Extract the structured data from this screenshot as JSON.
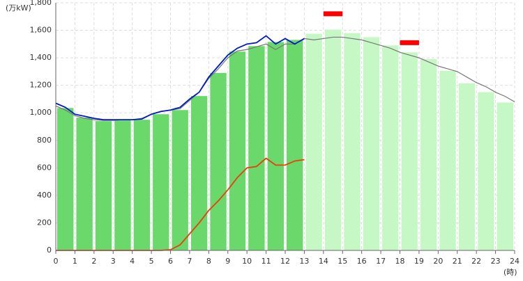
{
  "chart_data": {
    "type": "bar",
    "y_unit_label": "(万kW)",
    "x_unit_label": "(時)",
    "xlim": [
      0,
      24
    ],
    "xticks": [
      0,
      1,
      2,
      3,
      4,
      5,
      6,
      7,
      8,
      9,
      10,
      11,
      12,
      13,
      14,
      15,
      16,
      17,
      18,
      19,
      20,
      21,
      22,
      23,
      24
    ],
    "ylim": [
      0,
      1800
    ],
    "yticks": [
      0,
      200,
      400,
      600,
      800,
      {
        "value": 1000,
        "label": "1,000"
      },
      {
        "value": 1200,
        "label": "1,200"
      },
      {
        "value": 1400,
        "label": "1,400"
      },
      {
        "value": 1600,
        "label": "1,600"
      },
      {
        "value": 1800,
        "label": "1,800"
      }
    ],
    "grid": true,
    "categories": [
      0,
      1,
      2,
      3,
      4,
      5,
      6,
      7,
      8,
      9,
      10,
      11,
      12,
      13,
      14,
      15,
      16,
      17,
      18,
      19,
      20,
      21,
      22,
      23
    ],
    "series": [
      {
        "color": "#6ad86a",
        "values": [
          1035,
          965,
          940,
          945,
          950,
          990,
          1020,
          1122,
          1290,
          1445,
          1485,
          1515,
          1530,
          null,
          null,
          null,
          null,
          null,
          null,
          null,
          null,
          null,
          null,
          null
        ]
      },
      {
        "color": "#c6f8c6",
        "values": [
          null,
          null,
          null,
          null,
          null,
          null,
          null,
          null,
          null,
          null,
          null,
          null,
          null,
          1575,
          1605,
          1580,
          1550,
          1490,
          1440,
          1390,
          1305,
          1215,
          1150,
          1075
        ]
      }
    ],
    "lines": [
      {
        "color": "#777777",
        "x": [
          0,
          0.5,
          1,
          1.5,
          2,
          2.5,
          3,
          3.5,
          4,
          4.5,
          5,
          5.5,
          6,
          6.5,
          7,
          7.5,
          8,
          8.5,
          9,
          9.5,
          10,
          10.5,
          11,
          11.5,
          12,
          12.5,
          13,
          13.5,
          14,
          14.5,
          15,
          15.5,
          16,
          16.5,
          17,
          17.5,
          18,
          18.5,
          19,
          19.5,
          20,
          20.5,
          21,
          21.5,
          22,
          22.5,
          23,
          23.5,
          24
        ],
        "values": [
          1050,
          1020,
          980,
          960,
          950,
          945,
          945,
          950,
          950,
          960,
          990,
          1010,
          1020,
          1030,
          1090,
          1150,
          1250,
          1320,
          1400,
          1450,
          1460,
          1480,
          1500,
          1460,
          1500,
          1500,
          1540,
          1530,
          1540,
          1550,
          1550,
          1540,
          1530,
          1510,
          1490,
          1470,
          1440,
          1420,
          1400,
          1370,
          1340,
          1320,
          1300,
          1260,
          1220,
          1190,
          1150,
          1120,
          1080
        ]
      },
      {
        "color": "#0019c8",
        "x": [
          0,
          0.5,
          1,
          1.5,
          2,
          2.5,
          3,
          3.5,
          4,
          4.5,
          5,
          5.5,
          6,
          6.5,
          7,
          7.5,
          8,
          8.5,
          9,
          9.5,
          10,
          10.5,
          11,
          11.5,
          12,
          12.5,
          13
        ],
        "values": [
          1070,
          1040,
          990,
          975,
          960,
          950,
          950,
          950,
          950,
          955,
          990,
          1010,
          1020,
          1040,
          1100,
          1150,
          1260,
          1340,
          1420,
          1470,
          1500,
          1510,
          1560,
          1500,
          1540,
          1500,
          1540
        ]
      },
      {
        "color": "#e8400c",
        "x": [
          0,
          0.5,
          1,
          1.5,
          2,
          2.5,
          3,
          3.5,
          4,
          4.5,
          5,
          5.5,
          6,
          6.5,
          7,
          7.5,
          8,
          8.5,
          9,
          9.5,
          10,
          10.5,
          11,
          11.5,
          12,
          12.5,
          13
        ],
        "values": [
          0,
          0,
          0,
          0,
          0,
          0,
          0,
          0,
          0,
          0,
          0,
          0,
          5,
          40,
          120,
          200,
          290,
          360,
          440,
          530,
          600,
          610,
          670,
          620,
          620,
          650,
          660
        ]
      }
    ],
    "peak_markers": [
      {
        "color": "#ff0000",
        "x": [
          14,
          15
        ],
        "value": 1720
      },
      {
        "color": "#ff0000",
        "x": [
          18,
          19
        ],
        "value": 1510
      }
    ]
  }
}
